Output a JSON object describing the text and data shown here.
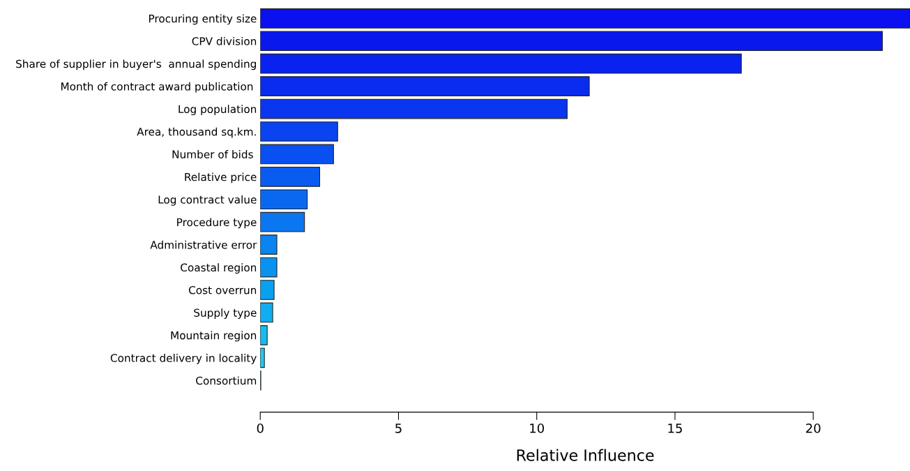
{
  "chart_data": {
    "type": "bar",
    "orientation": "horizontal",
    "xlabel": "Relative Influence",
    "categories": [
      "Procuring entity size",
      "CPV division",
      "Share of supplier in buyer's  annual spending",
      "Month of contract award publication ",
      "Log population",
      "Area, thousand sq.km.",
      "Number of bids ",
      "Relative price",
      "Log contract value",
      "Procedure type",
      "Administrative error",
      "Coastal region",
      "Cost overrun",
      "Supply type",
      "Mountain region",
      "Contract delivery in locality",
      "Consortium"
    ],
    "values": [
      23.5,
      22.5,
      17.4,
      11.9,
      11.1,
      2.8,
      2.65,
      2.15,
      1.7,
      1.6,
      0.6,
      0.6,
      0.5,
      0.45,
      0.25,
      0.15,
      0.02
    ],
    "colors": [
      "#0a10f0",
      "#0a18f0",
      "#0a22f0",
      "#0a2cf0",
      "#0a36f0",
      "#0a44f0",
      "#0a50f0",
      "#0a5cf0",
      "#0a68f0",
      "#0a76f0",
      "#0a84f0",
      "#0a92f0",
      "#0aa0f0",
      "#10aef0",
      "#16bcf0",
      "#1ccaf0",
      "#22d6f0"
    ],
    "xlim": [
      0,
      23.5
    ],
    "xticks": [
      0,
      5,
      10,
      15,
      20
    ],
    "grid": false,
    "legend": false
  }
}
